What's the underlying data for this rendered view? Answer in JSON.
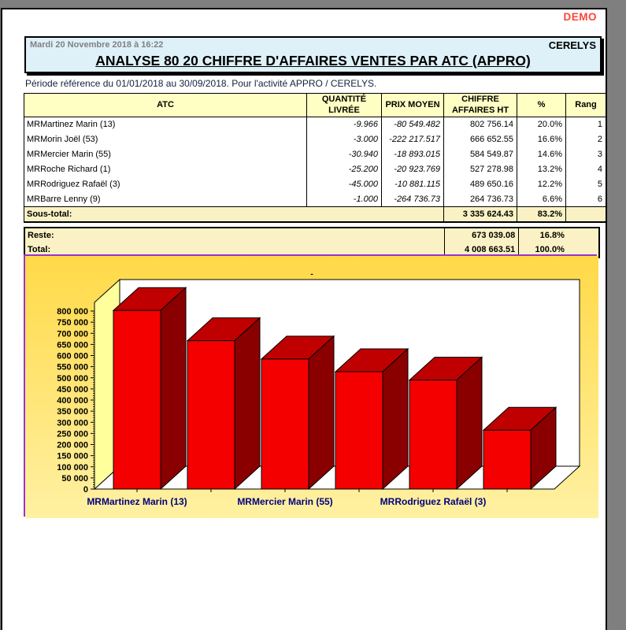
{
  "window": {
    "demo_label": "DEMO"
  },
  "header": {
    "date": "Mardi 20 Novembre 2018 à 16:22",
    "company": "CERELYS",
    "title": "ANALYSE 80 20 CHIFFRE D'AFFAIRES VENTES PAR ATC (APPRO)"
  },
  "subtitle": "Période référence du 01/01/2018 au 30/09/2018. Pour l'activité APPRO / CERELYS.",
  "table": {
    "columns": [
      {
        "lines": [
          "ATC"
        ]
      },
      {
        "lines": [
          "QUANTITÉ",
          "LIVRÉE"
        ]
      },
      {
        "lines": [
          "PRIX MOYEN"
        ]
      },
      {
        "lines": [
          "CHIFFRE",
          "AFFAIRES HT"
        ]
      },
      {
        "lines": [
          "%"
        ]
      },
      {
        "lines": [
          "Rang"
        ]
      }
    ],
    "rows": [
      {
        "atc": "MRMartinez Marin (13)",
        "qty": "-9.966",
        "price": "-80 549.482",
        "revenue": "802 756.14",
        "pct": "20.0%",
        "rank": "1"
      },
      {
        "atc": "MRMorin Joël (53)",
        "qty": "-3.000",
        "price": "-222 217.517",
        "revenue": "666 652.55",
        "pct": "16.6%",
        "rank": "2"
      },
      {
        "atc": "MRMercier Marin (55)",
        "qty": "-30.940",
        "price": "-18 893.015",
        "revenue": "584 549.87",
        "pct": "14.6%",
        "rank": "3"
      },
      {
        "atc": "MRRoche Richard (1)",
        "qty": "-25.200",
        "price": "-20 923.769",
        "revenue": "527 278.98",
        "pct": "13.2%",
        "rank": "4"
      },
      {
        "atc": "MRRodriguez Rafaël (3)",
        "qty": "-45.000",
        "price": "-10 881.115",
        "revenue": "489 650.16",
        "pct": "12.2%",
        "rank": "5"
      },
      {
        "atc": "MRBarre Lenny (9)",
        "qty": "-1.000",
        "price": "-264 736.73",
        "revenue": "264 736.73",
        "pct": "6.6%",
        "rank": "6"
      }
    ],
    "subtotal": {
      "label": "Sous-total:",
      "revenue": "3 335 624.43",
      "pct": "83.2%"
    },
    "reste": {
      "label": "Reste:",
      "revenue": "673 039.08",
      "pct": "16.8%"
    },
    "total": {
      "label": "Total:",
      "revenue": "4 008 663.51",
      "pct": "100.0%"
    }
  },
  "chart_data": {
    "type": "bar",
    "title": "-",
    "categories": [
      "MRMartinez Marin (13)",
      "MRMorin Joël (53)",
      "MRMercier Marin (55)",
      "MRRoche Richard (1)",
      "MRRodriguez Rafaël (3)",
      "MRBarre Lenny (9)"
    ],
    "values": [
      802756.14,
      666652.55,
      584549.87,
      527278.98,
      489650.16,
      264736.73
    ],
    "labeled_category_indices": [
      0,
      2,
      4
    ],
    "ylim": [
      0,
      800000
    ],
    "ytick_step": 50000,
    "ytick_minor_step": 10000,
    "legend": "none",
    "colors": {
      "bar_front": "#F40000",
      "bar_top": "#C00000",
      "bar_side": "#8A0000",
      "left_wall": "#FFFF9C",
      "back_wall": "#FFFFFF",
      "bg_gradient_top": "#FFD947",
      "bg_gradient_bottom": "#FFF1A3",
      "border": "#9933CC",
      "x_label": "#00007B"
    }
  }
}
